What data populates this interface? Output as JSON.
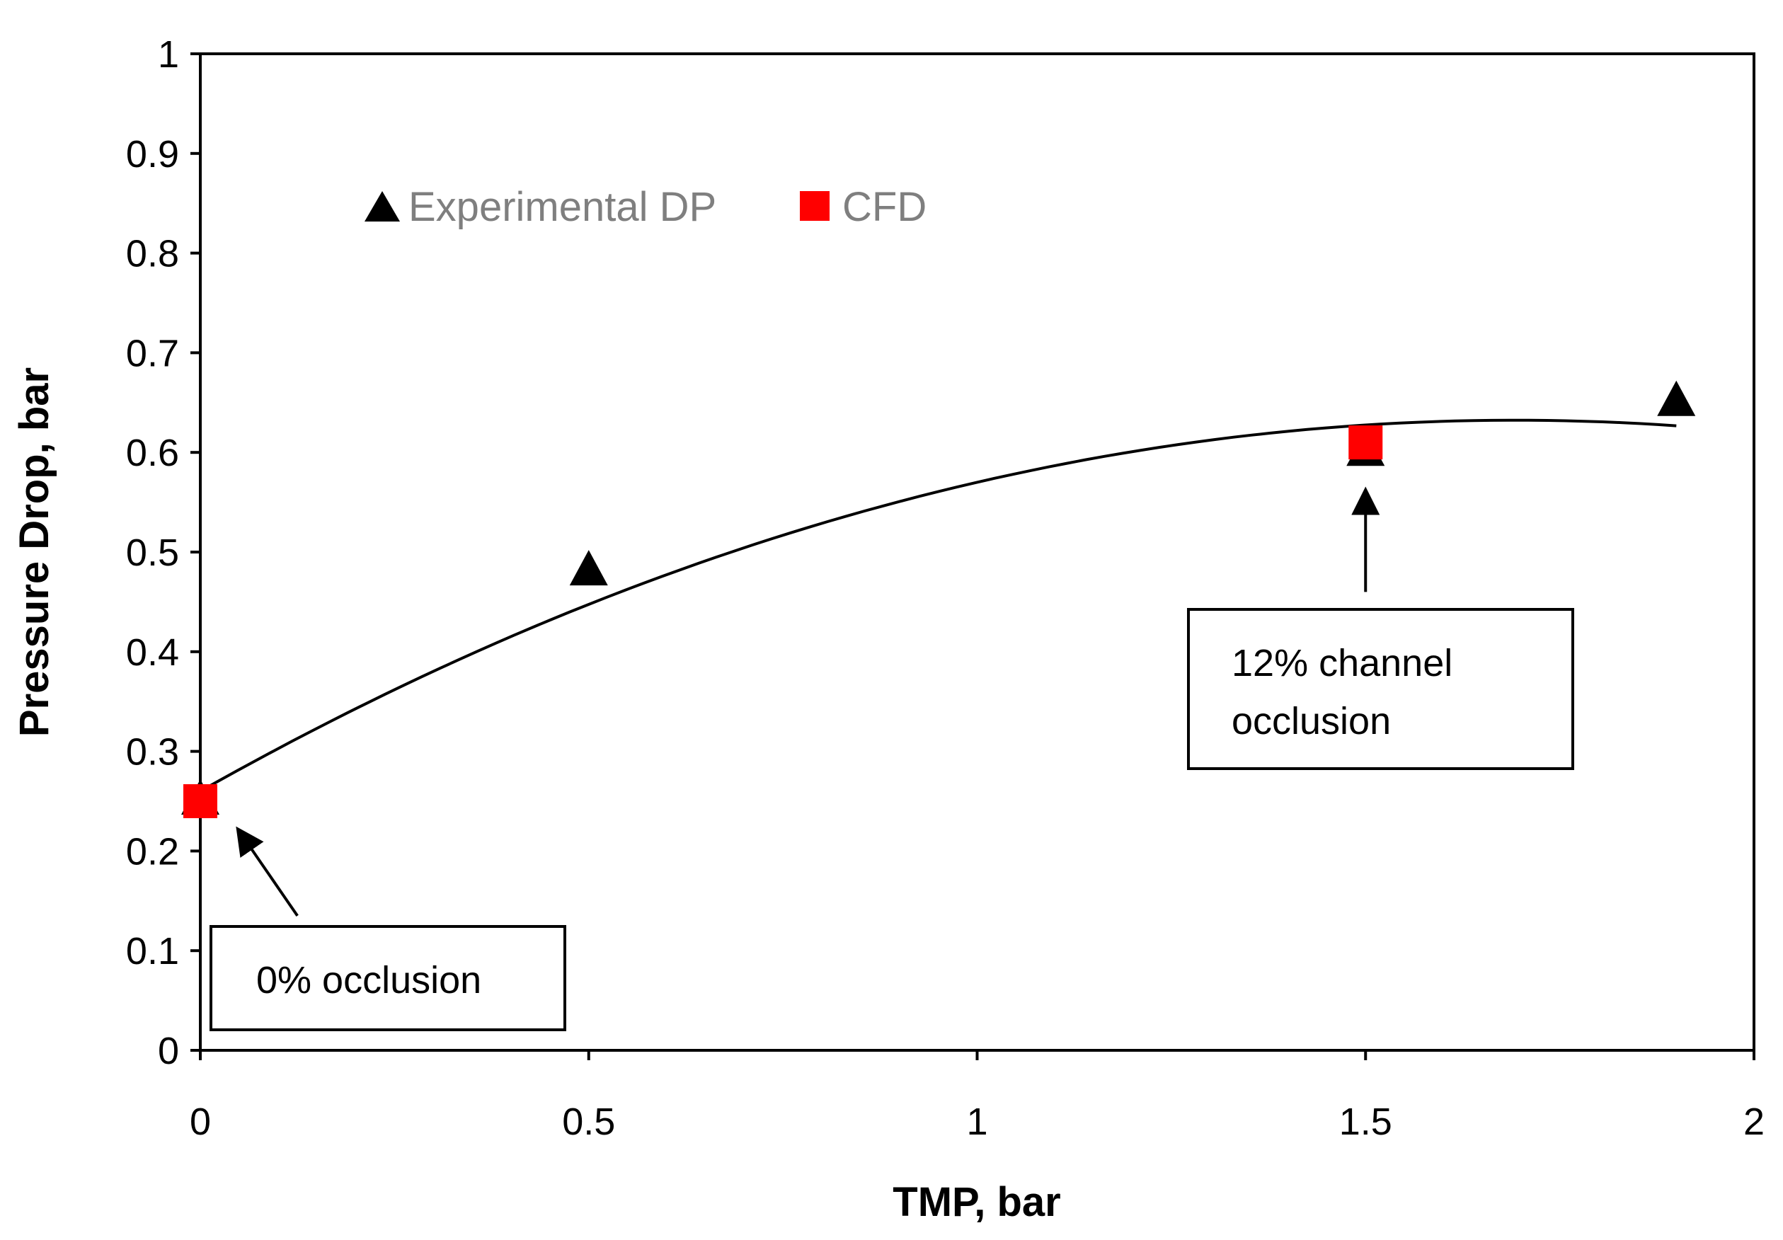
{
  "chart_data": {
    "type": "scatter",
    "title": "",
    "xlabel": "TMP, bar",
    "ylabel": "Pressure Drop, bar",
    "xlim": [
      0,
      2
    ],
    "ylim": [
      0,
      1
    ],
    "x_ticks": [
      0,
      0.5,
      1,
      1.5,
      2
    ],
    "x_tick_labels": [
      "0",
      "0.5",
      "1",
      "1.5",
      "2"
    ],
    "y_ticks": [
      0,
      0.1,
      0.2,
      0.3,
      0.4,
      0.5,
      0.6,
      0.7,
      0.8,
      0.9,
      1
    ],
    "y_tick_labels": [
      "0",
      "0.1",
      "0.2",
      "0.3",
      "0.4",
      "0.5",
      "0.6",
      "0.7",
      "0.8",
      "0.9",
      "1"
    ],
    "grid": false,
    "legend_position": "top-left",
    "series": [
      {
        "name": "Experimental DP",
        "marker": "triangle",
        "color": "#000000",
        "points": [
          {
            "x": 0.0,
            "y": 0.25
          },
          {
            "x": 0.5,
            "y": 0.48
          },
          {
            "x": 1.5,
            "y": 0.6
          },
          {
            "x": 1.9,
            "y": 0.65
          }
        ]
      },
      {
        "name": "CFD",
        "marker": "square",
        "color": "#ff0000",
        "points": [
          {
            "x": 0.0,
            "y": 0.25
          },
          {
            "x": 1.5,
            "y": 0.61
          }
        ]
      }
    ],
    "trendline": {
      "type": "polynomial",
      "color": "#000000",
      "x_range": [
        0.0,
        1.9
      ],
      "coefficients": [
        0.26,
        0.44,
        -0.13
      ]
    },
    "annotations": [
      {
        "id": "left",
        "lines": [
          "0% occlusion"
        ],
        "arrow_target": {
          "x": 0.05,
          "y": 0.22
        },
        "arrow_from": {
          "x": 0.125,
          "y": 0.135
        }
      },
      {
        "id": "right",
        "lines": [
          "12% channel",
          "occlusion"
        ],
        "arrow_target": {
          "x": 1.5,
          "y": 0.56
        },
        "arrow_from": {
          "x": 1.5,
          "y": 0.46
        }
      }
    ]
  }
}
